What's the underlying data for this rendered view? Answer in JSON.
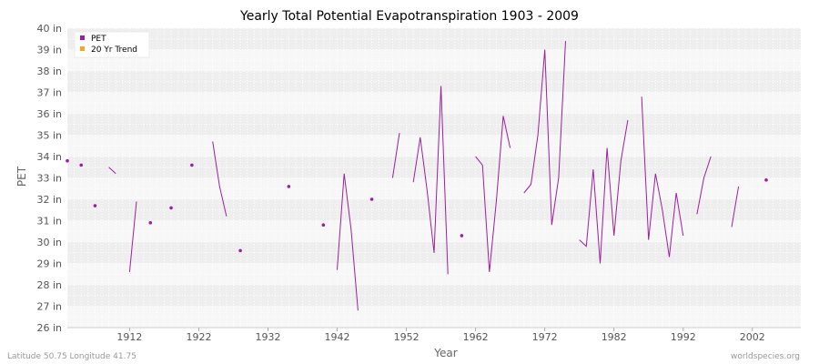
{
  "chart_data": {
    "type": "line",
    "title": "Yearly Total Potential Evapotranspiration 1903 - 2009",
    "xlabel": "Year",
    "ylabel": "PET",
    "xlim": [
      1903,
      2009
    ],
    "ylim": [
      26,
      40
    ],
    "x_ticks": [
      {
        "value": 1912,
        "label": "1912"
      },
      {
        "value": 1922,
        "label": "1922"
      },
      {
        "value": 1932,
        "label": "1932"
      },
      {
        "value": 1942,
        "label": "1942"
      },
      {
        "value": 1952,
        "label": "1952"
      },
      {
        "value": 1962,
        "label": "1962"
      },
      {
        "value": 1972,
        "label": "1972"
      },
      {
        "value": 1982,
        "label": "1982"
      },
      {
        "value": 1992,
        "label": "1992"
      },
      {
        "value": 2002,
        "label": "2002"
      }
    ],
    "y_ticks": [
      {
        "value": 26,
        "label": "26 in"
      },
      {
        "value": 27,
        "label": "27 in"
      },
      {
        "value": 28,
        "label": "28 in"
      },
      {
        "value": 29,
        "label": "29 in"
      },
      {
        "value": 30,
        "label": "30 in"
      },
      {
        "value": 31,
        "label": "31 in"
      },
      {
        "value": 32,
        "label": "32 in"
      },
      {
        "value": 33,
        "label": "33 in"
      },
      {
        "value": 34,
        "label": "34 in"
      },
      {
        "value": 35,
        "label": "35 in"
      },
      {
        "value": 36,
        "label": "36 in"
      },
      {
        "value": 37,
        "label": "37 in"
      },
      {
        "value": 38,
        "label": "38 in"
      },
      {
        "value": 39,
        "label": "39 in"
      },
      {
        "value": 40,
        "label": "40 in"
      }
    ],
    "grid": true,
    "legend_position": "top-left",
    "series": [
      {
        "name": "PET",
        "color": "#9c1fa0",
        "points": [
          [
            1903,
            33.8
          ],
          [
            1905,
            33.6
          ],
          [
            1907,
            31.7
          ],
          [
            1909,
            33.5
          ],
          [
            1910,
            33.2
          ],
          [
            1912,
            28.6
          ],
          [
            1913,
            31.9
          ],
          [
            1915,
            30.9
          ],
          [
            1918,
            31.6
          ],
          [
            1921,
            33.6
          ],
          [
            1924,
            34.7
          ],
          [
            1925,
            32.6
          ],
          [
            1926,
            31.2
          ],
          [
            1928,
            29.6
          ],
          [
            1935,
            32.6
          ],
          [
            1940,
            30.8
          ],
          [
            1942,
            28.7
          ],
          [
            1943,
            33.2
          ],
          [
            1944,
            30.6
          ],
          [
            1945,
            26.8
          ],
          [
            1947,
            32.0
          ],
          [
            1950,
            33.0
          ],
          [
            1951,
            35.1
          ],
          [
            1953,
            32.8
          ],
          [
            1954,
            34.9
          ],
          [
            1955,
            32.4
          ],
          [
            1956,
            29.5
          ],
          [
            1957,
            37.3
          ],
          [
            1958,
            28.5
          ],
          [
            1960,
            30.3
          ],
          [
            1962,
            34.0
          ],
          [
            1963,
            33.6
          ],
          [
            1964,
            28.6
          ],
          [
            1965,
            31.9
          ],
          [
            1966,
            35.9
          ],
          [
            1967,
            34.4
          ],
          [
            1969,
            32.3
          ],
          [
            1970,
            32.7
          ],
          [
            1971,
            35.0
          ],
          [
            1972,
            39.0
          ],
          [
            1973,
            30.8
          ],
          [
            1974,
            33.0
          ],
          [
            1975,
            39.4
          ],
          [
            1977,
            30.1
          ],
          [
            1978,
            29.8
          ],
          [
            1979,
            33.4
          ],
          [
            1980,
            29.0
          ],
          [
            1981,
            34.4
          ],
          [
            1982,
            30.3
          ],
          [
            1983,
            33.8
          ],
          [
            1984,
            35.7
          ],
          [
            1986,
            36.8
          ],
          [
            1987,
            30.1
          ],
          [
            1988,
            33.2
          ],
          [
            1989,
            31.5
          ],
          [
            1990,
            29.3
          ],
          [
            1991,
            32.3
          ],
          [
            1992,
            30.3
          ],
          [
            1994,
            31.3
          ],
          [
            1995,
            33.0
          ],
          [
            1996,
            34.0
          ],
          [
            1999,
            30.7
          ],
          [
            2000,
            32.6
          ],
          [
            2004,
            32.9
          ]
        ]
      },
      {
        "name": "20 Yr Trend",
        "color": "#f5a623",
        "points": []
      }
    ]
  },
  "footer": {
    "left": "Latitude 50.75 Longitude 41.75",
    "right": "worldspecies.org"
  }
}
